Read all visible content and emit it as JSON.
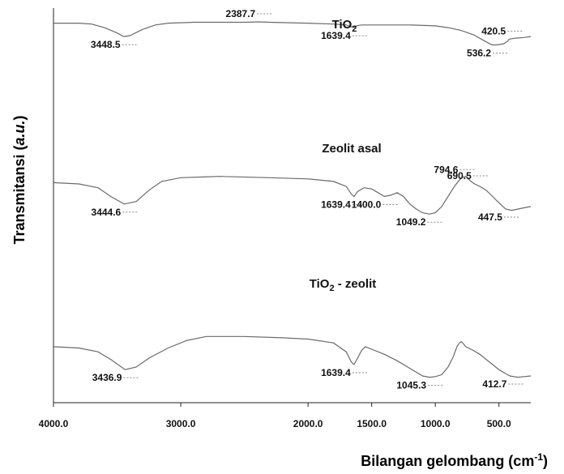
{
  "chart_data": {
    "type": "line",
    "xlabel": {
      "pre": "Bilangan gelombang (cm",
      "sup": "-1",
      "post": ")"
    },
    "ylabel": {
      "pre": "Transmitansi (",
      "ital": "a.u.",
      "post": ")"
    },
    "xlim": [
      4000,
      250
    ],
    "x_reversed": true,
    "xticks": [
      4000,
      3000,
      2000,
      1500,
      1000,
      500
    ],
    "xtick_labels": [
      "4000.0",
      "3000.0",
      "2000.0",
      "1500.0",
      "1000.0",
      "500.0"
    ],
    "ylim": [
      0,
      100
    ],
    "grid": false,
    "series": [
      {
        "name": {
          "pre": "TiO",
          "sub": "2",
          "post": ""
        },
        "points": [
          [
            4000,
            94
          ],
          [
            3800,
            94
          ],
          [
            3700,
            93
          ],
          [
            3600,
            89
          ],
          [
            3500,
            83
          ],
          [
            3448.5,
            79
          ],
          [
            3400,
            80
          ],
          [
            3300,
            87
          ],
          [
            3200,
            92
          ],
          [
            3100,
            94
          ],
          [
            2900,
            95
          ],
          [
            2500,
            95
          ],
          [
            2387.7,
            95.5
          ],
          [
            2300,
            95
          ],
          [
            2000,
            94
          ],
          [
            1800,
            93
          ],
          [
            1700,
            92
          ],
          [
            1660,
            90
          ],
          [
            1639.4,
            89
          ],
          [
            1620,
            91
          ],
          [
            1580,
            92
          ],
          [
            1500,
            92
          ],
          [
            1200,
            92
          ],
          [
            1000,
            91
          ],
          [
            900,
            89
          ],
          [
            800,
            86
          ],
          [
            700,
            81
          ],
          [
            650,
            77
          ],
          [
            600,
            73
          ],
          [
            560,
            70
          ],
          [
            536.2,
            69.5
          ],
          [
            500,
            70
          ],
          [
            460,
            71
          ],
          [
            430,
            74
          ],
          [
            420.5,
            76
          ],
          [
            380,
            77
          ],
          [
            300,
            78
          ],
          [
            250,
            79
          ]
        ],
        "peaks": [
          {
            "x": 3448.5,
            "label": "3448.5",
            "pos": "below"
          },
          {
            "x": 2387.7,
            "label": "2387.7",
            "pos": "above"
          },
          {
            "x": 1639.4,
            "label": "1639.4",
            "pos": "below"
          },
          {
            "x": 536.2,
            "label": "536.2",
            "pos": "below"
          },
          {
            "x": 420.5,
            "label": "420.5",
            "pos": "above"
          }
        ]
      },
      {
        "name": {
          "pre": "Zeolit asal",
          "sub": "",
          "post": ""
        },
        "points": [
          [
            4000,
            61
          ],
          [
            3800,
            60
          ],
          [
            3650,
            57
          ],
          [
            3550,
            50
          ],
          [
            3444.6,
            44
          ],
          [
            3350,
            46
          ],
          [
            3250,
            55
          ],
          [
            3150,
            62
          ],
          [
            3000,
            65
          ],
          [
            2700,
            66
          ],
          [
            2300,
            65
          ],
          [
            2000,
            64
          ],
          [
            1800,
            62
          ],
          [
            1700,
            58
          ],
          [
            1660,
            52
          ],
          [
            1639.4,
            50
          ],
          [
            1610,
            54
          ],
          [
            1560,
            57
          ],
          [
            1500,
            56
          ],
          [
            1450,
            53
          ],
          [
            1400,
            50
          ],
          [
            1350,
            51
          ],
          [
            1300,
            53
          ],
          [
            1250,
            50
          ],
          [
            1200,
            44
          ],
          [
            1150,
            40
          ],
          [
            1100,
            37
          ],
          [
            1049.2,
            36
          ],
          [
            1000,
            37
          ],
          [
            950,
            42
          ],
          [
            900,
            50
          ],
          [
            850,
            58
          ],
          [
            820,
            62
          ],
          [
            794.6,
            65
          ],
          [
            760,
            66
          ],
          [
            720,
            62
          ],
          [
            690.5,
            60
          ],
          [
            650,
            58
          ],
          [
            600,
            55
          ],
          [
            550,
            50
          ],
          [
            500,
            45
          ],
          [
            447.5,
            40
          ],
          [
            400,
            39
          ],
          [
            300,
            41
          ],
          [
            250,
            42
          ]
        ],
        "peaks": [
          {
            "x": 3444.6,
            "label": "3444.6",
            "pos": "below"
          },
          {
            "x": 1639.4,
            "label": "1639.4",
            "pos": "below"
          },
          {
            "x": 1400.0,
            "label": "1400.0",
            "pos": "below"
          },
          {
            "x": 1049.2,
            "label": "1049.2",
            "pos": "below"
          },
          {
            "x": 794.6,
            "label": "794.6",
            "pos": "above"
          },
          {
            "x": 690.5,
            "label": "690.5",
            "pos": "above"
          },
          {
            "x": 447.5,
            "label": "447.5",
            "pos": "below"
          }
        ]
      },
      {
        "name": {
          "pre": "TiO",
          "sub": "2",
          "post": " - zeolit"
        },
        "points": [
          [
            4000,
            30
          ],
          [
            3800,
            29
          ],
          [
            3650,
            26
          ],
          [
            3550,
            20
          ],
          [
            3436.9,
            12
          ],
          [
            3350,
            14
          ],
          [
            3250,
            21
          ],
          [
            3100,
            29
          ],
          [
            2950,
            35
          ],
          [
            2800,
            38
          ],
          [
            2500,
            38
          ],
          [
            2200,
            37
          ],
          [
            2000,
            36
          ],
          [
            1800,
            33
          ],
          [
            1700,
            26
          ],
          [
            1660,
            18
          ],
          [
            1639.4,
            16
          ],
          [
            1610,
            21
          ],
          [
            1580,
            27
          ],
          [
            1550,
            30
          ],
          [
            1500,
            28
          ],
          [
            1400,
            24
          ],
          [
            1300,
            19
          ],
          [
            1200,
            13
          ],
          [
            1100,
            7
          ],
          [
            1045.3,
            6
          ],
          [
            1000,
            6.5
          ],
          [
            950,
            8
          ],
          [
            900,
            14
          ],
          [
            860,
            22
          ],
          [
            830,
            30
          ],
          [
            810,
            33
          ],
          [
            794.6,
            34
          ],
          [
            760,
            30
          ],
          [
            700,
            27
          ],
          [
            650,
            24
          ],
          [
            600,
            20
          ],
          [
            550,
            16
          ],
          [
            500,
            12
          ],
          [
            450,
            9
          ],
          [
            412.7,
            7
          ],
          [
            350,
            6
          ],
          [
            300,
            6.5
          ],
          [
            250,
            7
          ]
        ],
        "peaks": [
          {
            "x": 3436.9,
            "label": "3436.9",
            "pos": "below"
          },
          {
            "x": 1639.4,
            "label": "1639.4",
            "pos": "below"
          },
          {
            "x": 1045.3,
            "label": "1045.3",
            "pos": "below"
          },
          {
            "x": 412.7,
            "label": "412.7",
            "pos": "below"
          }
        ]
      }
    ]
  }
}
